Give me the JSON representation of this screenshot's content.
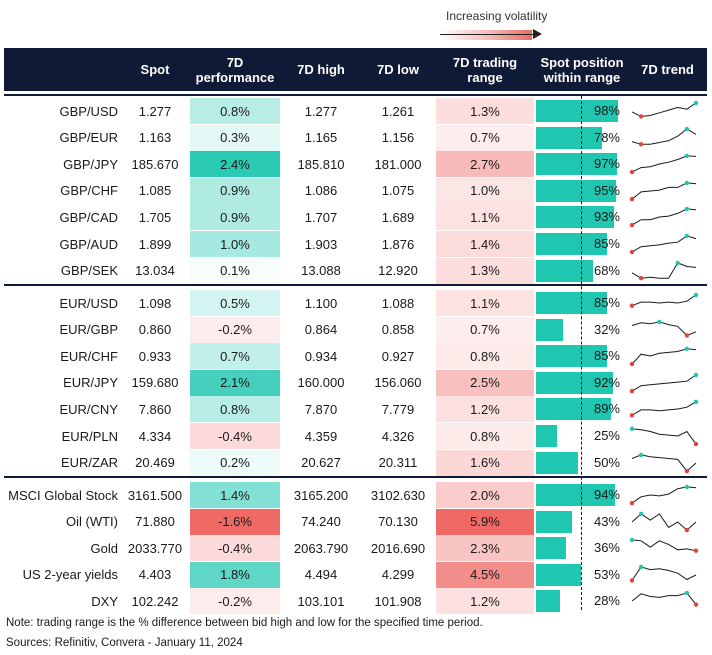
{
  "legend": {
    "label": "Increasing volatility"
  },
  "headers": {
    "spot": "Spot",
    "perf": "7D performance",
    "high": "7D high",
    "low": "7D low",
    "range": "7D trading range",
    "position": "Spot position within range",
    "trend": "7D trend"
  },
  "colors": {
    "header_bg": "#0f1b36",
    "position_bar": "#1fc7b1",
    "positive_strong": "#1fc7b1",
    "negative_strong": "#ef6a65",
    "sparkline": "#1a1a1a",
    "spark_max": "#1fc7b1",
    "spark_min": "#e0453d"
  },
  "groups": [
    {
      "rows": [
        {
          "label": "GBP/USD",
          "spot": "1.277",
          "perf": "0.8%",
          "high": "1.277",
          "low": "1.261",
          "range": "1.3%",
          "position": "98%",
          "pos_value": 98,
          "perf_value": 0.8,
          "range_value": 1.3,
          "trend": [
            0.45,
            0.2,
            0.25,
            0.4,
            0.55,
            0.7,
            0.6,
            0.95
          ]
        },
        {
          "label": "GBP/EUR",
          "spot": "1.163",
          "perf": "0.3%",
          "high": "1.165",
          "low": "1.156",
          "range": "0.7%",
          "position": "78%",
          "pos_value": 78,
          "perf_value": 0.3,
          "range_value": 0.7,
          "trend": [
            0.3,
            0.15,
            0.15,
            0.25,
            0.35,
            0.6,
            1.0,
            0.7
          ]
        },
        {
          "label": "GBP/JPY",
          "spot": "185.670",
          "perf": "2.4%",
          "high": "185.810",
          "low": "181.000",
          "range": "2.7%",
          "position": "97%",
          "pos_value": 97,
          "perf_value": 2.4,
          "range_value": 2.7,
          "trend": [
            0.05,
            0.3,
            0.35,
            0.5,
            0.6,
            0.75,
            0.95,
            0.92
          ]
        },
        {
          "label": "GBP/CHF",
          "spot": "1.085",
          "perf": "0.9%",
          "high": "1.086",
          "low": "1.075",
          "range": "1.0%",
          "position": "95%",
          "pos_value": 95,
          "perf_value": 0.9,
          "range_value": 1.0,
          "trend": [
            0.05,
            0.45,
            0.5,
            0.55,
            0.7,
            0.7,
            0.95,
            0.9
          ]
        },
        {
          "label": "GBP/CAD",
          "spot": "1.705",
          "perf": "0.9%",
          "high": "1.707",
          "low": "1.689",
          "range": "1.1%",
          "position": "93%",
          "pos_value": 93,
          "perf_value": 0.9,
          "range_value": 1.1,
          "trend": [
            0.05,
            0.35,
            0.35,
            0.5,
            0.55,
            0.7,
            0.95,
            0.9
          ]
        },
        {
          "label": "GBP/AUD",
          "spot": "1.899",
          "perf": "1.0%",
          "high": "1.903",
          "low": "1.876",
          "range": "1.4%",
          "position": "85%",
          "pos_value": 85,
          "perf_value": 1.0,
          "range_value": 1.4,
          "trend": [
            0.05,
            0.35,
            0.4,
            0.45,
            0.55,
            0.6,
            0.95,
            0.8
          ]
        },
        {
          "label": "GBP/SEK",
          "spot": "13.034",
          "perf": "0.1%",
          "high": "13.088",
          "low": "12.920",
          "range": "1.3%",
          "position": "68%",
          "pos_value": 68,
          "perf_value": 0.1,
          "range_value": 1.3,
          "trend": [
            0.4,
            0.1,
            0.15,
            0.1,
            0.1,
            0.95,
            0.75,
            0.7
          ]
        }
      ]
    },
    {
      "rows": [
        {
          "label": "EUR/USD",
          "spot": "1.098",
          "perf": "0.5%",
          "high": "1.100",
          "low": "1.088",
          "range": "1.1%",
          "position": "85%",
          "pos_value": 85,
          "perf_value": 0.5,
          "range_value": 1.1,
          "trend": [
            0.35,
            0.55,
            0.55,
            0.5,
            0.55,
            0.5,
            0.6,
            0.95
          ]
        },
        {
          "label": "EUR/GBP",
          "spot": "0.860",
          "perf": "-0.2%",
          "high": "0.864",
          "low": "0.858",
          "range": "0.7%",
          "position": "32%",
          "pos_value": 32,
          "perf_value": -0.2,
          "range_value": 0.7,
          "trend": [
            0.75,
            0.9,
            0.85,
            0.95,
            0.8,
            0.7,
            0.2,
            0.4
          ]
        },
        {
          "label": "EUR/CHF",
          "spot": "0.933",
          "perf": "0.7%",
          "high": "0.934",
          "low": "0.927",
          "range": "0.8%",
          "position": "85%",
          "pos_value": 85,
          "perf_value": 0.7,
          "range_value": 0.8,
          "trend": [
            0.05,
            0.6,
            0.5,
            0.65,
            0.7,
            0.75,
            0.9,
            0.85
          ]
        },
        {
          "label": "EUR/JPY",
          "spot": "159.680",
          "perf": "2.1%",
          "high": "160.000",
          "low": "156.060",
          "range": "2.5%",
          "position": "92%",
          "pos_value": 92,
          "perf_value": 2.1,
          "range_value": 2.5,
          "trend": [
            0.05,
            0.35,
            0.4,
            0.45,
            0.5,
            0.55,
            0.6,
            0.95
          ]
        },
        {
          "label": "EUR/CNY",
          "spot": "7.860",
          "perf": "0.8%",
          "high": "7.870",
          "low": "7.779",
          "range": "1.2%",
          "position": "89%",
          "pos_value": 89,
          "perf_value": 0.8,
          "range_value": 1.2,
          "trend": [
            0.15,
            0.45,
            0.45,
            0.4,
            0.45,
            0.5,
            0.6,
            0.9
          ]
        },
        {
          "label": "EUR/PLN",
          "spot": "4.334",
          "perf": "-0.4%",
          "high": "4.359",
          "low": "4.326",
          "range": "0.8%",
          "position": "25%",
          "pos_value": 25,
          "perf_value": -0.4,
          "range_value": 0.8,
          "trend": [
            0.9,
            0.85,
            0.75,
            0.6,
            0.55,
            0.5,
            0.75,
            0.05
          ]
        },
        {
          "label": "EUR/ZAR",
          "spot": "20.469",
          "perf": "0.2%",
          "high": "20.627",
          "low": "20.311",
          "range": "1.6%",
          "position": "50%",
          "pos_value": 50,
          "perf_value": 0.2,
          "range_value": 1.6,
          "trend": [
            0.75,
            0.95,
            0.85,
            0.8,
            0.75,
            0.7,
            0.05,
            0.5
          ]
        }
      ]
    },
    {
      "rows": [
        {
          "label": "MSCI Global Stock",
          "spot": "3161.500",
          "perf": "1.4%",
          "high": "3165.200",
          "low": "3102.630",
          "range": "2.0%",
          "position": "94%",
          "pos_value": 94,
          "perf_value": 1.4,
          "range_value": 2.0,
          "trend": [
            0.05,
            0.4,
            0.5,
            0.45,
            0.55,
            0.85,
            0.95,
            0.9
          ]
        },
        {
          "label": "Oil (WTI)",
          "spot": "71.880",
          "perf": "-1.6%",
          "high": "74.240",
          "low": "70.130",
          "range": "5.9%",
          "position": "43%",
          "pos_value": 43,
          "perf_value": -1.6,
          "range_value": 5.9,
          "trend": [
            0.5,
            0.95,
            0.6,
            0.95,
            0.2,
            0.5,
            0.05,
            0.5
          ]
        },
        {
          "label": "Gold",
          "spot": "2033.770",
          "perf": "-0.4%",
          "high": "2063.790",
          "low": "2016.690",
          "range": "2.3%",
          "position": "36%",
          "pos_value": 36,
          "perf_value": -0.4,
          "range_value": 2.3,
          "trend": [
            0.95,
            0.9,
            0.55,
            0.9,
            0.7,
            0.4,
            0.45,
            0.35
          ]
        },
        {
          "label": "US 2-year yields",
          "spot": "4.403",
          "perf": "1.8%",
          "high": "4.494",
          "low": "4.299",
          "range": "4.5%",
          "position": "53%",
          "pos_value": 53,
          "perf_value": 1.8,
          "range_value": 4.5,
          "trend": [
            0.2,
            0.95,
            0.8,
            0.85,
            0.75,
            0.6,
            0.25,
            0.5
          ]
        },
        {
          "label": "DXY",
          "spot": "102.242",
          "perf": "-0.2%",
          "high": "103.101",
          "low": "101.908",
          "range": "1.2%",
          "position": "28%",
          "pos_value": 28,
          "perf_value": -0.2,
          "range_value": 1.2,
          "trend": [
            0.5,
            0.9,
            0.75,
            0.7,
            0.8,
            0.8,
            0.95,
            0.3
          ]
        }
      ]
    }
  ],
  "footer": {
    "note": "Note: trading range is the % difference between bid high and low for the specified time period.",
    "sources": "Sources: Refinitiv, Convera - January 11, 2024"
  }
}
